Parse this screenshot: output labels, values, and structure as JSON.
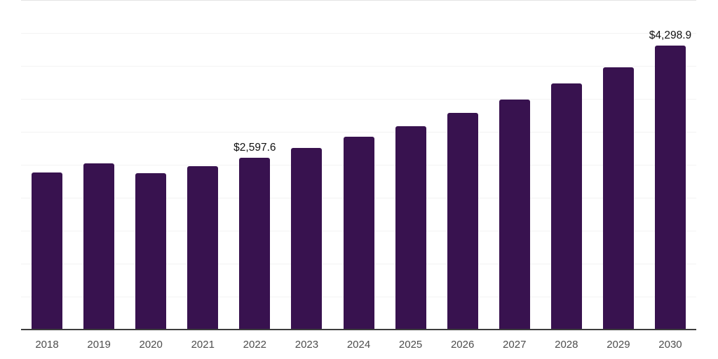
{
  "chart_data": {
    "type": "bar",
    "title": "",
    "xlabel": "",
    "ylabel": "",
    "categories": [
      "2018",
      "2019",
      "2020",
      "2021",
      "2022",
      "2023",
      "2024",
      "2025",
      "2026",
      "2027",
      "2028",
      "2029",
      "2030"
    ],
    "values": [
      2375,
      2513,
      2364,
      2470,
      2597.6,
      2743,
      2920,
      3080,
      3278,
      3481,
      3721,
      3970,
      4298.9
    ],
    "data_labels": {
      "2022": "$2,597.6",
      "2030": "$4,298.9"
    },
    "ylim": [
      0,
      5000
    ],
    "grid_interval": 500,
    "grid": "horizontal",
    "legend": "none",
    "y_axis_ticks_visible": false,
    "colors": {
      "bar": "#38124f",
      "gridline": "#f3f3f3",
      "top_gridline": "#e4e4e4",
      "axis_line": "#3d3d3d",
      "tick_label": "#4d4d4d",
      "data_label": "#111111",
      "background": "#ffffff"
    }
  }
}
